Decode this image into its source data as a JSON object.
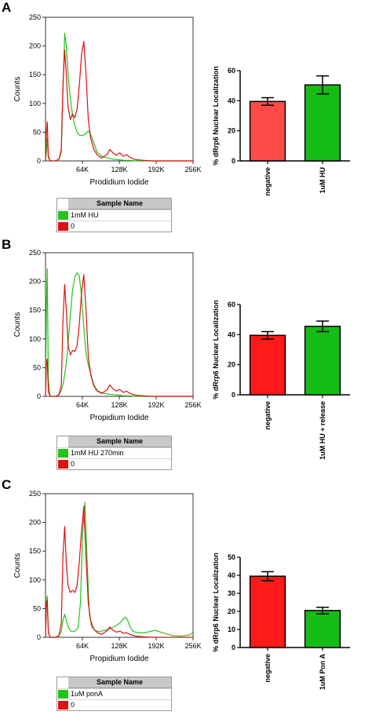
{
  "panels": [
    {
      "letter": "A",
      "legend": {
        "header": "Sample Name",
        "entries": [
          {
            "label": "1mM HU",
            "color": "#22c41a"
          },
          {
            "label": "0",
            "color": "#e01010"
          }
        ]
      }
    },
    {
      "letter": "B",
      "legend": {
        "header": "Sample Name",
        "entries": [
          {
            "label": "1mM HU 270min",
            "color": "#22c41a"
          },
          {
            "label": "0",
            "color": "#e01010"
          }
        ]
      }
    },
    {
      "letter": "C",
      "legend": {
        "header": "Sample Name",
        "entries": [
          {
            "label": "1uM ponA",
            "color": "#22c41a"
          },
          {
            "label": "0",
            "color": "#e01010"
          }
        ]
      }
    }
  ],
  "chart_data": [
    {
      "type": "line",
      "panel": "A",
      "xlabel": "Prodidium Iodide",
      "ylabel": "Counts",
      "xlim": [
        0,
        262144
      ],
      "ylim": [
        0,
        250
      ],
      "xticks": [
        {
          "v": 65536,
          "label": "64K"
        },
        {
          "v": 131072,
          "label": "128K"
        },
        {
          "v": 196608,
          "label": "192K"
        },
        {
          "v": 262144,
          "label": "256K"
        }
      ],
      "yticks": [
        0,
        50,
        100,
        150,
        200,
        250
      ],
      "series": [
        {
          "name": "1mM HU",
          "color": "#22c41a",
          "x": [
            0,
            1500,
            3000,
            5000,
            8000,
            11000,
            14000,
            17000,
            20000,
            24000,
            28000,
            31000,
            34000,
            37000,
            40000,
            44000,
            48000,
            52000,
            56000,
            60000,
            64000,
            68000,
            72000,
            76000,
            80000,
            86000,
            92000,
            100000,
            110000,
            120000,
            130000,
            140000,
            150000,
            160000,
            175000,
            190000,
            210000,
            230000,
            250000,
            262144
          ],
          "y": [
            0,
            15,
            40,
            5,
            1,
            0,
            0,
            0,
            1,
            3,
            15,
            120,
            222,
            200,
            150,
            110,
            80,
            62,
            50,
            45,
            44,
            45,
            48,
            52,
            47,
            30,
            15,
            8,
            5,
            3,
            2,
            1,
            1,
            0,
            0,
            0,
            0,
            0,
            0,
            0
          ]
        },
        {
          "name": "0",
          "color": "#e01010",
          "x": [
            0,
            1500,
            3000,
            5000,
            8000,
            11000,
            14000,
            17000,
            20000,
            24000,
            28000,
            31000,
            34000,
            37000,
            40000,
            44000,
            48000,
            52000,
            56000,
            60000,
            64000,
            68000,
            72000,
            76000,
            80000,
            86000,
            92000,
            100000,
            110000,
            114000,
            120000,
            126000,
            132000,
            138000,
            144000,
            150000,
            160000,
            175000,
            190000,
            210000,
            230000,
            250000,
            262144
          ],
          "y": [
            0,
            50,
            68,
            8,
            1,
            0,
            0,
            0,
            1,
            3,
            20,
            130,
            193,
            150,
            95,
            72,
            82,
            75,
            90,
            130,
            185,
            208,
            150,
            72,
            40,
            20,
            10,
            5,
            12,
            20,
            14,
            10,
            14,
            8,
            11,
            6,
            2,
            1,
            0,
            0,
            0,
            0,
            0
          ]
        }
      ]
    },
    {
      "type": "bar",
      "panel": "A",
      "categories": [
        "negative",
        "1uM HU"
      ],
      "values": [
        39.5,
        50.5
      ],
      "errors": [
        2.5,
        6
      ],
      "colors": [
        "#ff4a4a",
        "#16bc16"
      ],
      "ylabel": "% dRrp6 Nuclear Localization",
      "ylim": [
        0,
        60
      ],
      "yticks": [
        0,
        20,
        40,
        60
      ]
    },
    {
      "type": "line",
      "panel": "B",
      "xlabel": "Propidium Iodide",
      "ylabel": "Counts",
      "xlim": [
        0,
        262144
      ],
      "ylim": [
        0,
        250
      ],
      "xticks": [
        {
          "v": 65536,
          "label": "64K"
        },
        {
          "v": 131072,
          "label": "128K"
        },
        {
          "v": 196608,
          "label": "192K"
        },
        {
          "v": 262144,
          "label": "256K"
        }
      ],
      "yticks": [
        0,
        50,
        100,
        150,
        200,
        250
      ],
      "series": [
        {
          "name": "1mM HU 270min",
          "color": "#22c41a",
          "x": [
            0,
            1500,
            3000,
            5000,
            8000,
            11000,
            14000,
            17000,
            20000,
            24000,
            28000,
            32000,
            36000,
            40000,
            44000,
            48000,
            52000,
            56000,
            60000,
            64000,
            68000,
            72000,
            76000,
            80000,
            86000,
            92000,
            100000,
            110000,
            120000,
            130000,
            140000,
            150000,
            160000,
            175000,
            190000,
            210000,
            230000,
            250000,
            262144
          ],
          "y": [
            0,
            150,
            222,
            30,
            2,
            0,
            0,
            0,
            1,
            3,
            10,
            25,
            50,
            90,
            140,
            185,
            208,
            215,
            210,
            175,
            120,
            75,
            55,
            40,
            20,
            10,
            6,
            4,
            3,
            2,
            1,
            1,
            0,
            0,
            0,
            0,
            0,
            0,
            0
          ]
        },
        {
          "name": "0",
          "color": "#e01010",
          "x": [
            0,
            1500,
            3000,
            5000,
            8000,
            11000,
            14000,
            17000,
            20000,
            24000,
            28000,
            31000,
            34000,
            37000,
            40000,
            44000,
            48000,
            52000,
            56000,
            60000,
            64000,
            68000,
            72000,
            76000,
            80000,
            86000,
            92000,
            100000,
            110000,
            114000,
            120000,
            126000,
            132000,
            138000,
            144000,
            150000,
            160000,
            175000,
            190000,
            210000,
            230000,
            250000,
            262144
          ],
          "y": [
            0,
            55,
            65,
            8,
            1,
            0,
            0,
            0,
            1,
            3,
            20,
            130,
            195,
            150,
            90,
            72,
            80,
            78,
            88,
            125,
            180,
            212,
            150,
            70,
            38,
            18,
            9,
            5,
            12,
            20,
            13,
            9,
            12,
            7,
            9,
            5,
            2,
            1,
            0,
            0,
            0,
            0,
            0
          ]
        }
      ]
    },
    {
      "type": "bar",
      "panel": "B",
      "categories": [
        "negative",
        "1uM HU + release"
      ],
      "values": [
        39.5,
        45.5
      ],
      "errors": [
        2.5,
        3.5
      ],
      "colors": [
        "#ff1a1a",
        "#16bc16"
      ],
      "ylabel": "% dRrp6 Nuclear Localization",
      "ylim": [
        0,
        60
      ],
      "yticks": [
        0,
        20,
        40,
        60
      ]
    },
    {
      "type": "line",
      "panel": "C",
      "xlabel": "Propidium Iodide",
      "ylabel": "Counts",
      "xlim": [
        0,
        262144
      ],
      "ylim": [
        0,
        250
      ],
      "xticks": [
        {
          "v": 65536,
          "label": "64K"
        },
        {
          "v": 131072,
          "label": "128K"
        },
        {
          "v": 196608,
          "label": "192K"
        },
        {
          "v": 262144,
          "label": "256K"
        }
      ],
      "yticks": [
        0,
        50,
        100,
        150,
        200,
        250
      ],
      "series": [
        {
          "name": "1uM ponA",
          "color": "#22c41a",
          "x": [
            0,
            1500,
            3000,
            5000,
            8000,
            11000,
            14000,
            17000,
            20000,
            24000,
            28000,
            31000,
            34000,
            38000,
            42000,
            46000,
            50000,
            54000,
            58000,
            62000,
            66000,
            70000,
            74000,
            78000,
            82000,
            88000,
            95000,
            105000,
            115000,
            125000,
            132000,
            138000,
            142000,
            146000,
            150000,
            156000,
            165000,
            175000,
            185000,
            195000,
            205000,
            215000,
            225000,
            240000,
            255000,
            262144
          ],
          "y": [
            0,
            60,
            72,
            10,
            1,
            0,
            0,
            0,
            1,
            3,
            10,
            30,
            40,
            25,
            15,
            10,
            10,
            12,
            18,
            60,
            180,
            235,
            130,
            40,
            18,
            12,
            10,
            12,
            15,
            20,
            25,
            32,
            35,
            30,
            18,
            10,
            8,
            8,
            10,
            12,
            9,
            6,
            3,
            2,
            4,
            8
          ]
        },
        {
          "name": "0",
          "color": "#e01010",
          "x": [
            0,
            1500,
            3000,
            5000,
            8000,
            11000,
            14000,
            17000,
            20000,
            24000,
            28000,
            31000,
            34000,
            37000,
            40000,
            44000,
            48000,
            52000,
            56000,
            60000,
            64000,
            68000,
            72000,
            76000,
            80000,
            86000,
            92000,
            100000,
            110000,
            114000,
            120000,
            126000,
            132000,
            138000,
            144000,
            150000,
            160000,
            175000,
            190000,
            210000,
            230000,
            250000,
            262144
          ],
          "y": [
            0,
            55,
            65,
            8,
            1,
            0,
            0,
            0,
            1,
            3,
            25,
            140,
            193,
            130,
            90,
            78,
            82,
            78,
            90,
            130,
            185,
            228,
            140,
            60,
            30,
            14,
            8,
            5,
            12,
            18,
            12,
            9,
            11,
            7,
            8,
            5,
            2,
            1,
            0,
            0,
            0,
            0,
            0
          ]
        }
      ]
    },
    {
      "type": "bar",
      "panel": "C",
      "categories": [
        "negative",
        "1uM Pon A"
      ],
      "values": [
        39.5,
        20.5
      ],
      "errors": [
        2.5,
        1.8
      ],
      "colors": [
        "#ff1a1a",
        "#16bc16"
      ],
      "ylabel": "% dRrp6 Nuclear Localization",
      "ylim": [
        0,
        50
      ],
      "yticks": [
        0,
        10,
        20,
        30,
        40,
        50
      ]
    }
  ]
}
